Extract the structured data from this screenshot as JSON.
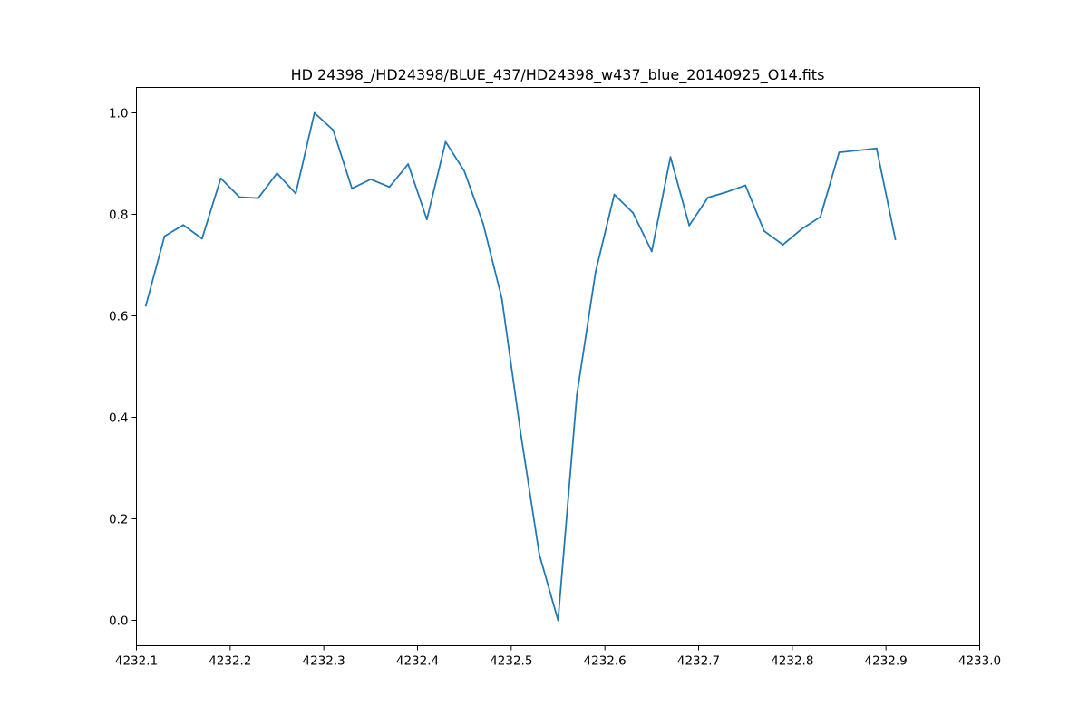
{
  "chart_data": {
    "type": "line",
    "title": "HD 24398_/HD24398/BLUE_437/HD24398_w437_blue_20140925_O14.fits",
    "xlabel": "",
    "ylabel": "",
    "xlim": [
      4232.1,
      4233.0
    ],
    "ylim": [
      -0.05,
      1.05
    ],
    "xticks": [
      "4232.1",
      "4232.2",
      "4232.3",
      "4232.4",
      "4232.5",
      "4232.6",
      "4232.7",
      "4232.8",
      "4232.9",
      "4233.0"
    ],
    "yticks": [
      "0.0",
      "0.2",
      "0.4",
      "0.6",
      "0.8",
      "1.0"
    ],
    "grid": false,
    "series": [
      {
        "color": "#1f77b4",
        "x": [
          4232.11,
          4232.13,
          4232.15,
          4232.17,
          4232.19,
          4232.21,
          4232.23,
          4232.25,
          4232.27,
          4232.29,
          4232.31,
          4232.33,
          4232.35,
          4232.37,
          4232.39,
          4232.41,
          4232.43,
          4232.45,
          4232.47,
          4232.49,
          4232.51,
          4232.53,
          4232.55,
          4232.57,
          4232.59,
          4232.61,
          4232.63,
          4232.65,
          4232.67,
          4232.69,
          4232.71,
          4232.73,
          4232.75,
          4232.77,
          4232.79,
          4232.81,
          4232.83,
          4232.85,
          4232.87,
          4232.89,
          4232.91
        ],
        "y": [
          0.62,
          0.757,
          0.779,
          0.752,
          0.871,
          0.834,
          0.832,
          0.881,
          0.841,
          1.0,
          0.966,
          0.851,
          0.869,
          0.854,
          0.899,
          0.79,
          0.943,
          0.885,
          0.782,
          0.634,
          0.37,
          0.13,
          0.0,
          0.443,
          0.686,
          0.839,
          0.803,
          0.727,
          0.913,
          0.778,
          0.833,
          0.844,
          0.857,
          0.767,
          0.74,
          0.771,
          0.795,
          0.922,
          0.926,
          0.93,
          0.751
        ]
      }
    ]
  }
}
